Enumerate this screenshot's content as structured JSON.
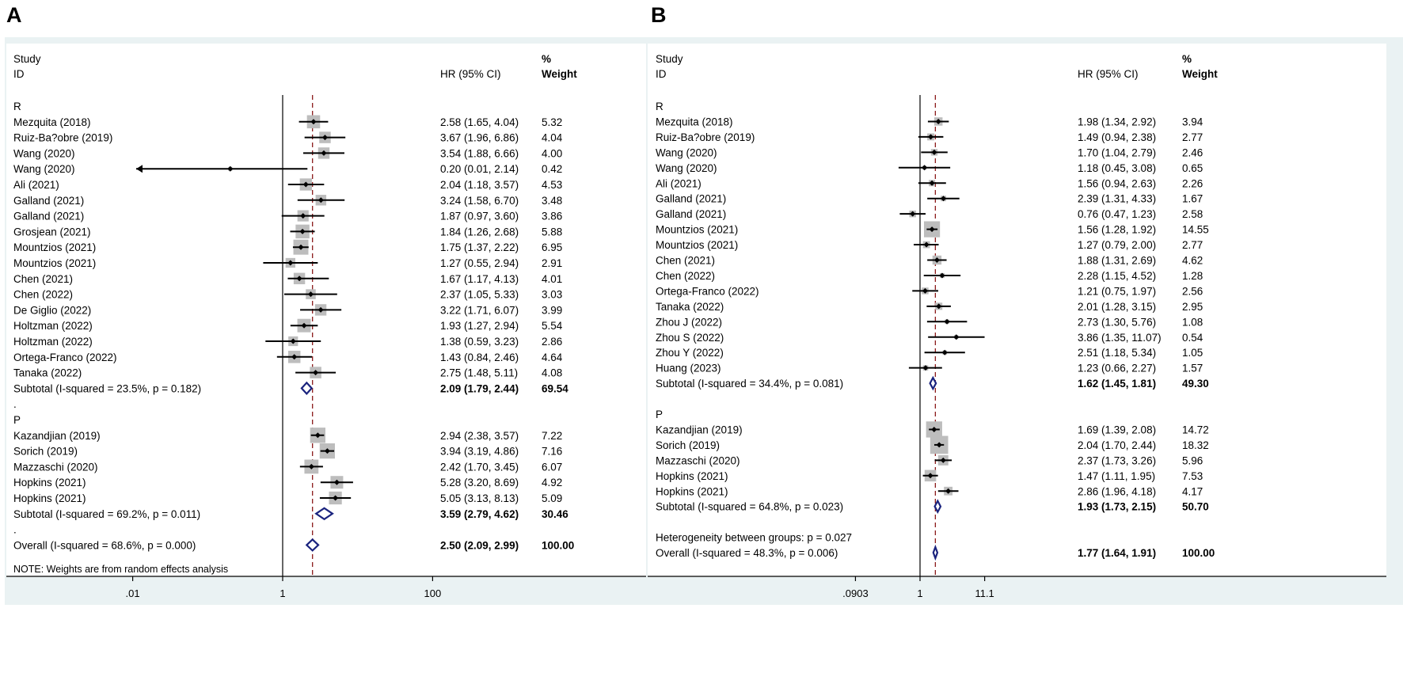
{
  "colors": {
    "panel_bg": "#eaf2f3",
    "plot_bg": "#ffffff",
    "box": "#bdbdbd",
    "diamond": "#1a237e",
    "ref_line": "#8b1a1a"
  },
  "chart_data": [
    {
      "panel_label": "A",
      "type": "forest",
      "header": {
        "study": "Study",
        "id": "ID",
        "hr": "HR (95% CI)",
        "pct": "%",
        "weight": "Weight"
      },
      "axis": {
        "scale": "log",
        "ticks": [
          0.01,
          1,
          100
        ],
        "tick_labels": [
          ".01",
          "1",
          "100"
        ],
        "overall_hr": 2.5
      },
      "rows": [
        {
          "kind": "group",
          "label": "R"
        },
        {
          "kind": "study",
          "label": "Mezquita (2018)",
          "hr": 2.58,
          "lo": 1.65,
          "hi": 4.04,
          "ci": "2.58 (1.65, 4.04)",
          "weight": "5.32",
          "w": 5.32
        },
        {
          "kind": "study",
          "label": "Ruiz-Ba?obre (2019)",
          "hr": 3.67,
          "lo": 1.96,
          "hi": 6.86,
          "ci": "3.67 (1.96, 6.86)",
          "weight": "4.04",
          "w": 4.04
        },
        {
          "kind": "study",
          "label": "Wang (2020)",
          "hr": 3.54,
          "lo": 1.88,
          "hi": 6.66,
          "ci": "3.54 (1.88, 6.66)",
          "weight": "4.00",
          "w": 4.0
        },
        {
          "kind": "study",
          "label": "Wang (2020)",
          "hr": 0.2,
          "lo": 0.01,
          "hi": 2.14,
          "ci": "0.20 (0.01, 2.14)",
          "weight": "0.42",
          "w": 0.42,
          "arrow_left": true
        },
        {
          "kind": "study",
          "label": "Ali (2021)",
          "hr": 2.04,
          "lo": 1.18,
          "hi": 3.57,
          "ci": "2.04 (1.18, 3.57)",
          "weight": "4.53",
          "w": 4.53
        },
        {
          "kind": "study",
          "label": "Galland (2021)",
          "hr": 3.24,
          "lo": 1.58,
          "hi": 6.7,
          "ci": "3.24 (1.58, 6.70)",
          "weight": "3.48",
          "w": 3.48
        },
        {
          "kind": "study",
          "label": "Galland (2021)",
          "hr": 1.87,
          "lo": 0.97,
          "hi": 3.6,
          "ci": "1.87 (0.97, 3.60)",
          "weight": "3.86",
          "w": 3.86
        },
        {
          "kind": "study",
          "label": "Grosjean (2021)",
          "hr": 1.84,
          "lo": 1.26,
          "hi": 2.68,
          "ci": "1.84 (1.26, 2.68)",
          "weight": "5.88",
          "w": 5.88
        },
        {
          "kind": "study",
          "label": "Mountzios (2021)",
          "hr": 1.75,
          "lo": 1.37,
          "hi": 2.22,
          "ci": "1.75 (1.37, 2.22)",
          "weight": "6.95",
          "w": 6.95
        },
        {
          "kind": "study",
          "label": "Mountzios (2021)",
          "hr": 1.27,
          "lo": 0.55,
          "hi": 2.94,
          "ci": "1.27 (0.55, 2.94)",
          "weight": "2.91",
          "w": 2.91
        },
        {
          "kind": "study",
          "label": "Chen (2021)",
          "hr": 1.67,
          "lo": 1.17,
          "hi": 4.13,
          "ci": "1.67 (1.17, 4.13)",
          "weight": "4.01",
          "w": 4.01
        },
        {
          "kind": "study",
          "label": "Chen (2022)",
          "hr": 2.37,
          "lo": 1.05,
          "hi": 5.33,
          "ci": "2.37 (1.05, 5.33)",
          "weight": "3.03",
          "w": 3.03
        },
        {
          "kind": "study",
          "label": "De Giglio (2022)",
          "hr": 3.22,
          "lo": 1.71,
          "hi": 6.07,
          "ci": "3.22 (1.71, 6.07)",
          "weight": "3.99",
          "w": 3.99
        },
        {
          "kind": "study",
          "label": "Holtzman (2022)",
          "hr": 1.93,
          "lo": 1.27,
          "hi": 2.94,
          "ci": "1.93 (1.27, 2.94)",
          "weight": "5.54",
          "w": 5.54
        },
        {
          "kind": "study",
          "label": "Holtzman (2022)",
          "hr": 1.38,
          "lo": 0.59,
          "hi": 3.23,
          "ci": "1.38 (0.59, 3.23)",
          "weight": "2.86",
          "w": 2.86
        },
        {
          "kind": "study",
          "label": "Ortega-Franco (2022)",
          "hr": 1.43,
          "lo": 0.84,
          "hi": 2.46,
          "ci": "1.43 (0.84, 2.46)",
          "weight": "4.64",
          "w": 4.64
        },
        {
          "kind": "study",
          "label": "Tanaka (2022)",
          "hr": 2.75,
          "lo": 1.48,
          "hi": 5.11,
          "ci": "2.75 (1.48, 5.11)",
          "weight": "4.08",
          "w": 4.08
        },
        {
          "kind": "subtotal",
          "label": "Subtotal  (I-squared = 23.5%, p = 0.182)",
          "hr": 2.09,
          "lo": 1.79,
          "hi": 2.44,
          "ci": "2.09 (1.79, 2.44)",
          "weight": "69.54"
        },
        {
          "kind": "dot",
          "label": "."
        },
        {
          "kind": "group",
          "label": "P"
        },
        {
          "kind": "study",
          "label": "Kazandjian (2019)",
          "hr": 2.94,
          "lo": 2.38,
          "hi": 3.57,
          "ci": "2.94 (2.38, 3.57)",
          "weight": "7.22",
          "w": 7.22
        },
        {
          "kind": "study",
          "label": "Sorich (2019)",
          "hr": 3.94,
          "lo": 3.19,
          "hi": 4.86,
          "ci": "3.94 (3.19, 4.86)",
          "weight": "7.16",
          "w": 7.16
        },
        {
          "kind": "study",
          "label": "Mazzaschi (2020)",
          "hr": 2.42,
          "lo": 1.7,
          "hi": 3.45,
          "ci": "2.42 (1.70, 3.45)",
          "weight": "6.07",
          "w": 6.07
        },
        {
          "kind": "study",
          "label": "Hopkins (2021)",
          "hr": 5.28,
          "lo": 3.2,
          "hi": 8.69,
          "ci": "5.28 (3.20, 8.69)",
          "weight": "4.92",
          "w": 4.92
        },
        {
          "kind": "study",
          "label": "Hopkins (2021)",
          "hr": 5.05,
          "lo": 3.13,
          "hi": 8.13,
          "ci": "5.05 (3.13, 8.13)",
          "weight": "5.09",
          "w": 5.09
        },
        {
          "kind": "subtotal",
          "label": "Subtotal  (I-squared = 69.2%, p = 0.011)",
          "hr": 3.59,
          "lo": 2.79,
          "hi": 4.62,
          "ci": "3.59 (2.79, 4.62)",
          "weight": "30.46"
        },
        {
          "kind": "dot",
          "label": "."
        },
        {
          "kind": "overall",
          "label": "Overall  (I-squared = 68.6%, p = 0.000)",
          "hr": 2.5,
          "lo": 2.09,
          "hi": 2.99,
          "ci": "2.50 (2.09, 2.99)",
          "weight": "100.00"
        }
      ],
      "note": "NOTE: Weights are from random effects analysis"
    },
    {
      "panel_label": "B",
      "type": "forest",
      "header": {
        "study": "Study",
        "id": "ID",
        "hr": "HR (95% CI)",
        "pct": "%",
        "weight": "Weight"
      },
      "axis": {
        "scale": "log",
        "ticks": [
          0.0903,
          1,
          11.1
        ],
        "tick_labels": [
          ".0903",
          "1",
          "11.1"
        ],
        "overall_hr": 1.77
      },
      "rows": [
        {
          "kind": "group",
          "label": "R"
        },
        {
          "kind": "study",
          "label": "Mezquita (2018)",
          "hr": 1.98,
          "lo": 1.34,
          "hi": 2.92,
          "ci": "1.98 (1.34, 2.92)",
          "weight": "3.94",
          "w": 3.94
        },
        {
          "kind": "study",
          "label": "Ruiz-Ba?obre (2019)",
          "hr": 1.49,
          "lo": 0.94,
          "hi": 2.38,
          "ci": "1.49 (0.94, 2.38)",
          "weight": "2.77",
          "w": 2.77
        },
        {
          "kind": "study",
          "label": "Wang (2020)",
          "hr": 1.7,
          "lo": 1.04,
          "hi": 2.79,
          "ci": "1.70 (1.04, 2.79)",
          "weight": "2.46",
          "w": 2.46
        },
        {
          "kind": "study",
          "label": "Wang (2020)",
          "hr": 1.18,
          "lo": 0.45,
          "hi": 3.08,
          "ci": "1.18 (0.45, 3.08)",
          "weight": "0.65",
          "w": 0.65
        },
        {
          "kind": "study",
          "label": "Ali (2021)",
          "hr": 1.56,
          "lo": 0.94,
          "hi": 2.63,
          "ci": "1.56 (0.94, 2.63)",
          "weight": "2.26",
          "w": 2.26
        },
        {
          "kind": "study",
          "label": "Galland (2021)",
          "hr": 2.39,
          "lo": 1.31,
          "hi": 4.33,
          "ci": "2.39 (1.31, 4.33)",
          "weight": "1.67",
          "w": 1.67
        },
        {
          "kind": "study",
          "label": "Galland (2021)",
          "hr": 0.76,
          "lo": 0.47,
          "hi": 1.23,
          "ci": "0.76 (0.47, 1.23)",
          "weight": "2.58",
          "w": 2.58
        },
        {
          "kind": "study",
          "label": "Mountzios (2021)",
          "hr": 1.56,
          "lo": 1.28,
          "hi": 1.92,
          "ci": "1.56 (1.28, 1.92)",
          "weight": "14.55",
          "w": 14.55
        },
        {
          "kind": "study",
          "label": "Mountzios (2021)",
          "hr": 1.27,
          "lo": 0.79,
          "hi": 2.0,
          "ci": "1.27 (0.79, 2.00)",
          "weight": "2.77",
          "w": 2.77
        },
        {
          "kind": "study",
          "label": "Chen (2021)",
          "hr": 1.88,
          "lo": 1.31,
          "hi": 2.69,
          "ci": "1.88 (1.31, 2.69)",
          "weight": "4.62",
          "w": 4.62
        },
        {
          "kind": "study",
          "label": "Chen (2022)",
          "hr": 2.28,
          "lo": 1.15,
          "hi": 4.52,
          "ci": "2.28 (1.15, 4.52)",
          "weight": "1.28",
          "w": 1.28
        },
        {
          "kind": "study",
          "label": "Ortega-Franco (2022)",
          "hr": 1.21,
          "lo": 0.75,
          "hi": 1.97,
          "ci": "1.21 (0.75, 1.97)",
          "weight": "2.56",
          "w": 2.56
        },
        {
          "kind": "study",
          "label": "Tanaka (2022)",
          "hr": 2.01,
          "lo": 1.28,
          "hi": 3.15,
          "ci": "2.01 (1.28, 3.15)",
          "weight": "2.95",
          "w": 2.95
        },
        {
          "kind": "study",
          "label": "Zhou J (2022)",
          "hr": 2.73,
          "lo": 1.3,
          "hi": 5.76,
          "ci": "2.73 (1.30, 5.76)",
          "weight": "1.08",
          "w": 1.08
        },
        {
          "kind": "study",
          "label": "Zhou S (2022)",
          "hr": 3.86,
          "lo": 1.35,
          "hi": 11.07,
          "ci": "3.86 (1.35, 11.07)",
          "weight": "0.54",
          "w": 0.54
        },
        {
          "kind": "study",
          "label": "Zhou Y (2022)",
          "hr": 2.51,
          "lo": 1.18,
          "hi": 5.34,
          "ci": "2.51 (1.18, 5.34)",
          "weight": "1.05",
          "w": 1.05
        },
        {
          "kind": "study",
          "label": "Huang (2023)",
          "hr": 1.23,
          "lo": 0.66,
          "hi": 2.27,
          "ci": "1.23 (0.66, 2.27)",
          "weight": "1.57",
          "w": 1.57
        },
        {
          "kind": "subtotal",
          "label": "Subtotal  (I-squared = 34.4%, p = 0.081)",
          "hr": 1.62,
          "lo": 1.45,
          "hi": 1.81,
          "ci": "1.62 (1.45, 1.81)",
          "weight": "49.30"
        },
        {
          "kind": "blank"
        },
        {
          "kind": "group",
          "label": "P"
        },
        {
          "kind": "study",
          "label": "Kazandjian (2019)",
          "hr": 1.69,
          "lo": 1.39,
          "hi": 2.08,
          "ci": "1.69 (1.39, 2.08)",
          "weight": "14.72",
          "w": 14.72
        },
        {
          "kind": "study",
          "label": "Sorich (2019)",
          "hr": 2.04,
          "lo": 1.7,
          "hi": 2.44,
          "ci": "2.04 (1.70, 2.44)",
          "weight": "18.32",
          "w": 18.32
        },
        {
          "kind": "study",
          "label": "Mazzaschi (2020)",
          "hr": 2.37,
          "lo": 1.73,
          "hi": 3.26,
          "ci": "2.37 (1.73, 3.26)",
          "weight": "5.96",
          "w": 5.96
        },
        {
          "kind": "study",
          "label": "Hopkins (2021)",
          "hr": 1.47,
          "lo": 1.11,
          "hi": 1.95,
          "ci": "1.47 (1.11, 1.95)",
          "weight": "7.53",
          "w": 7.53
        },
        {
          "kind": "study",
          "label": "Hopkins (2021)",
          "hr": 2.86,
          "lo": 1.96,
          "hi": 4.18,
          "ci": "2.86 (1.96, 4.18)",
          "weight": "4.17",
          "w": 4.17
        },
        {
          "kind": "subtotal",
          "label": "Subtotal  (I-squared = 64.8%, p = 0.023)",
          "hr": 1.93,
          "lo": 1.73,
          "hi": 2.15,
          "ci": "1.93 (1.73, 2.15)",
          "weight": "50.70"
        },
        {
          "kind": "blank"
        },
        {
          "kind": "text",
          "label": "Heterogeneity between groups: p = 0.027"
        },
        {
          "kind": "overall",
          "label": "Overall  (I-squared = 48.3%, p = 0.006)",
          "hr": 1.77,
          "lo": 1.64,
          "hi": 1.91,
          "ci": "1.77 (1.64, 1.91)",
          "weight": "100.00"
        }
      ]
    }
  ]
}
